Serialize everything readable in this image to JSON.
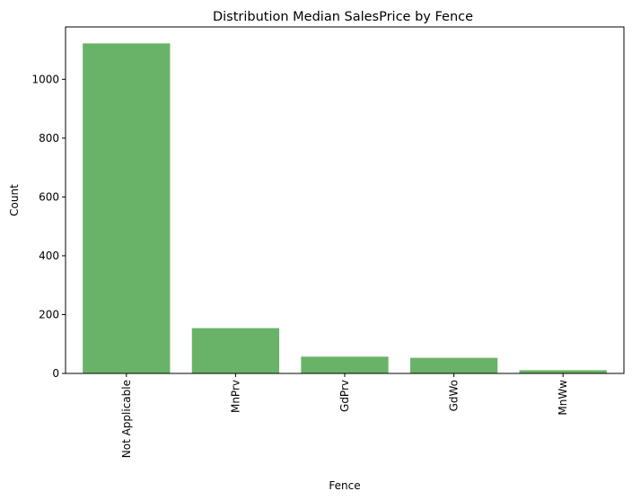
{
  "chart_data": {
    "type": "bar",
    "title": "Distribution Median SalesPrice by Fence",
    "xlabel": "Fence",
    "ylabel": "Count",
    "categories": [
      "Not Applicable",
      "MnPrv",
      "GdPrv",
      "GdWo",
      "MnWw"
    ],
    "values": [
      1122,
      154,
      57,
      53,
      11
    ],
    "ylim": [
      0,
      1178
    ],
    "yticks": [
      0,
      200,
      400,
      600,
      800,
      1000
    ],
    "bar_color": "#69b369",
    "grid": false,
    "xtick_rotation": 90
  }
}
